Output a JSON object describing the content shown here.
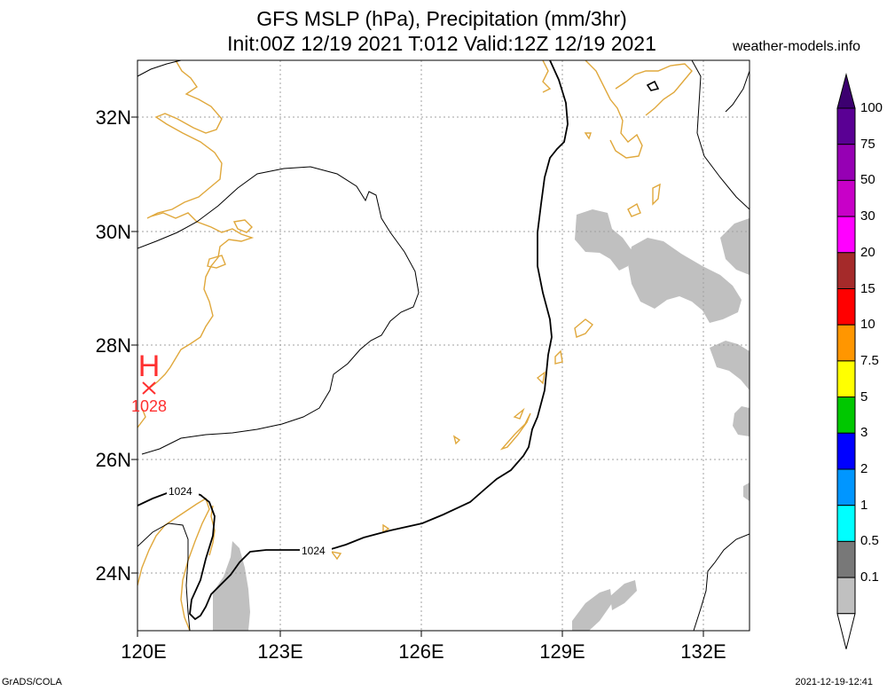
{
  "header": {
    "title_line1": "GFS MSLP (hPa), Precipitation (mm/3hr)",
    "title_line2": "Init:00Z 12/19 2021 T:012 Valid:12Z 12/19 2021",
    "site": "weather-models.info"
  },
  "footer": {
    "left": "GrADS/COLA",
    "right": "2021-12-19-12:41"
  },
  "axes": {
    "lat_labels": [
      "32N",
      "30N",
      "28N",
      "26N",
      "24N"
    ],
    "lon_labels": [
      "120E",
      "123E",
      "126E",
      "129E",
      "132E"
    ]
  },
  "pressure": {
    "high_label": "H",
    "high_value": "1028",
    "contour_labels": [
      "1024",
      "1024"
    ]
  },
  "colorbar": {
    "labels": [
      "100",
      "75",
      "50",
      "30",
      "20",
      "15",
      "10",
      "7.5",
      "5",
      "3",
      "2",
      "1",
      "0.5",
      "0.1"
    ],
    "colors": [
      "#5a0094",
      "#9600b4",
      "#c800c8",
      "#ff00ff",
      "#a52a2a",
      "#ff0000",
      "#ff9600",
      "#ffff00",
      "#00c800",
      "#0000ff",
      "#0096ff",
      "#00ffff",
      "#787878",
      "#c0c0c0"
    ],
    "top_color": "#3c0070",
    "bottom_color": "#ffffff"
  },
  "colors": {
    "coastline": "#e0a83c",
    "precip_light": "#c0c0c0",
    "high_marker": "#ff3030",
    "grid": "#a0a0a0"
  }
}
